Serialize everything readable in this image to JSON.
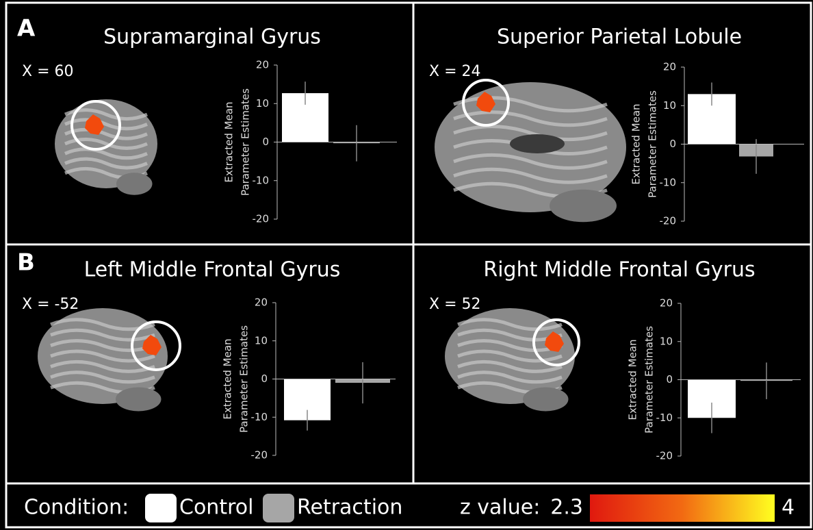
{
  "chart_data": [
    {
      "type": "bar",
      "panel": "A",
      "title": "Supramarginal Gyrus",
      "annotation": "X = 60",
      "ylabel": [
        "Extracted Mean",
        "Parameter Estimates"
      ],
      "categories": [
        null,
        null
      ],
      "values": [
        12.7,
        -0.3
      ],
      "errors": [
        3,
        4.7
      ],
      "ylim": [
        -20,
        20
      ],
      "yticks": [
        -20,
        -10,
        0,
        10,
        20
      ]
    },
    {
      "type": "bar",
      "title": "Superior Parietal Lobule",
      "annotation": "X = 24",
      "ylabel": [
        "Extracted Mean",
        "Parameter Estimates"
      ],
      "categories": [
        null,
        null
      ],
      "values": [
        13,
        -3.2
      ],
      "errors": [
        3,
        4.5
      ],
      "ylim": [
        -20,
        20
      ],
      "yticks": [
        -20,
        -10,
        0,
        10,
        20
      ]
    },
    {
      "type": "bar",
      "panel": "B",
      "title": "Left Middle Frontal Gyrus",
      "annotation": "X = -52",
      "ylabel": [
        "Extracted Mean",
        "Parameter Estimates"
      ],
      "categories": [
        null,
        null
      ],
      "values": [
        -10.8,
        -1
      ],
      "errors": [
        2.7,
        5.4
      ],
      "ylim": [
        -20,
        20
      ],
      "yticks": [
        -20,
        -10,
        0,
        10,
        20
      ]
    },
    {
      "type": "bar",
      "title": "Right Middle Frontal Gyrus",
      "annotation": "X = 52",
      "ylabel": [
        "Extracted Mean",
        "Parameter Estimates"
      ],
      "categories": [
        null,
        null
      ],
      "values": [
        -10,
        -0.3
      ],
      "errors": [
        4,
        4.8
      ],
      "ylim": [
        -20,
        20
      ],
      "yticks": [
        -20,
        -10,
        0,
        10,
        20
      ]
    }
  ],
  "legend": {
    "title": "Condition:",
    "items": [
      {
        "name": "Control",
        "color": "#ffffff"
      },
      {
        "name": "Retraction",
        "color": "#a6a6a6"
      }
    ]
  },
  "colorbar": {
    "label": "z value:",
    "min": 2.3,
    "max": 4,
    "colors": [
      "#e0190f",
      "#f26a12",
      "#ffff20"
    ]
  }
}
